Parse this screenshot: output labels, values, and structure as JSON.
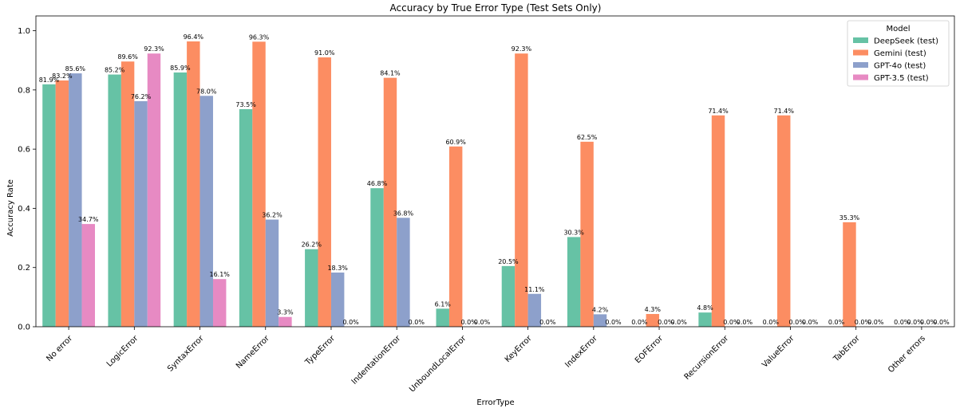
{
  "chart_data": {
    "type": "bar",
    "title": "Accuracy by True Error Type (Test Sets Only)",
    "xlabel": "ErrorType",
    "ylabel": "Accuracy Rate",
    "ylim": [
      0,
      1.05
    ],
    "yticks": [
      0.0,
      0.2,
      0.4,
      0.6,
      0.8,
      1.0
    ],
    "ytick_labels": [
      "0.0",
      "0.2",
      "0.4",
      "0.6",
      "0.8",
      "1.0"
    ],
    "grid": false,
    "legend": {
      "title": "Model",
      "placement": "top-right"
    },
    "categories": [
      "No error",
      "LogicError",
      "SyntaxError",
      "NameError",
      "TypeError",
      "IndentationError",
      "UnboundLocalError",
      "KeyError",
      "IndexError",
      "EOFError",
      "RecursionError",
      "ValueError",
      "TabError",
      "Other errors"
    ],
    "series": [
      {
        "name": "DeepSeek (test)",
        "color": "#66c2a5",
        "values": [
          0.819,
          0.852,
          0.859,
          0.735,
          0.262,
          0.468,
          0.061,
          0.205,
          0.303,
          0.0,
          0.048,
          0.0,
          0.0,
          0.0
        ],
        "labels": [
          "81.9%",
          "85.2%",
          "85.9%",
          "73.5%",
          "26.2%",
          "46.8%",
          "6.1%",
          "20.5%",
          "30.3%",
          "0.0%",
          "4.8%",
          "0.0%",
          "0.0%",
          "0.0%"
        ]
      },
      {
        "name": "Gemini (test)",
        "color": "#fc8d62",
        "values": [
          0.832,
          0.896,
          0.964,
          0.963,
          0.91,
          0.841,
          0.609,
          0.923,
          0.625,
          0.043,
          0.714,
          0.714,
          0.353,
          0.0
        ],
        "labels": [
          "83.2%",
          "89.6%",
          "96.4%",
          "96.3%",
          "91.0%",
          "84.1%",
          "60.9%",
          "92.3%",
          "62.5%",
          "4.3%",
          "71.4%",
          "71.4%",
          "35.3%",
          "0.0%"
        ]
      },
      {
        "name": "GPT-4o (test)",
        "color": "#8da0cb",
        "values": [
          0.856,
          0.762,
          0.78,
          0.362,
          0.183,
          0.368,
          0.0,
          0.111,
          0.042,
          0.0,
          0.0,
          0.0,
          0.0,
          0.0
        ],
        "labels": [
          "85.6%",
          "76.2%",
          "78.0%",
          "36.2%",
          "18.3%",
          "36.8%",
          "0.0%",
          "11.1%",
          "4.2%",
          "0.0%",
          "0.0%",
          "0.0%",
          "0.0%",
          "0.0%"
        ]
      },
      {
        "name": "GPT-3.5 (test)",
        "color": "#e78ac3",
        "values": [
          0.347,
          0.923,
          0.161,
          0.033,
          0.0,
          0.0,
          0.0,
          0.0,
          0.0,
          0.0,
          0.0,
          0.0,
          0.0,
          0.0
        ],
        "labels": [
          "34.7%",
          "92.3%",
          "16.1%",
          "3.3%",
          "0.0%",
          "0.0%",
          "0.0%",
          "0.0%",
          "0.0%",
          "0.0%",
          "0.0%",
          "0.0%",
          "0.0%",
          "0.0%"
        ]
      }
    ]
  }
}
